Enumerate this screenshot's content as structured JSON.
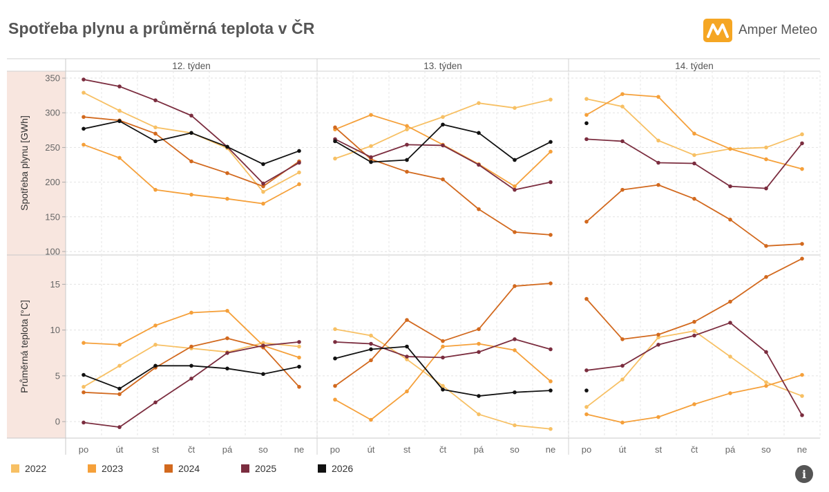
{
  "title": "Spotřeba plynu a průměrná teplota v ČR",
  "brand": {
    "name": "Amper Meteo",
    "color": "#f5a623"
  },
  "info_icon": "info-icon",
  "chart_data": {
    "type": "line",
    "facets": [
      "12. týden",
      "13. týden",
      "14. týden"
    ],
    "categories": [
      "po",
      "út",
      "st",
      "čt",
      "pá",
      "so",
      "ne"
    ],
    "rows": [
      {
        "key": "gas",
        "ylabel": "Spotřeba plynu [GWh]",
        "ylim": [
          95,
          360
        ],
        "yticks": [
          100,
          150,
          200,
          250,
          300,
          350
        ]
      },
      {
        "key": "temp",
        "ylabel": "Průměrná teplota [°C]",
        "ylim": [
          -1.8,
          18.2
        ],
        "yticks": [
          0,
          5,
          10,
          15
        ]
      }
    ],
    "grid": true,
    "legend_position": "bottom",
    "series": [
      {
        "name": "2022",
        "color": "#f7c064",
        "gas": [
          [
            329,
            303,
            279,
            271,
            249,
            186,
            214
          ],
          [
            234,
            252,
            276,
            294,
            314,
            307,
            319
          ],
          [
            320,
            309,
            260,
            239,
            248,
            250,
            269
          ]
        ],
        "temp": [
          [
            3.8,
            6.1,
            8.4,
            8.0,
            7.6,
            8.6,
            8.2
          ],
          [
            10.1,
            9.4,
            6.8,
            3.9,
            0.8,
            -0.4,
            -0.8
          ],
          [
            1.6,
            4.6,
            9.2,
            9.9,
            7.1,
            4.3,
            2.8
          ]
        ]
      },
      {
        "name": "2023",
        "color": "#f5a03a",
        "gas": [
          [
            254,
            235,
            189,
            182,
            176,
            169,
            197
          ],
          [
            276,
            297,
            281,
            254,
            226,
            194,
            244
          ],
          [
            297,
            327,
            323,
            270,
            248,
            233,
            219
          ]
        ],
        "temp": [
          [
            8.6,
            8.4,
            10.5,
            11.9,
            12.1,
            8.3,
            7.0
          ],
          [
            2.4,
            0.2,
            3.3,
            8.2,
            8.5,
            7.8,
            4.4
          ],
          [
            0.8,
            -0.1,
            0.5,
            1.9,
            3.1,
            3.9,
            5.1
          ]
        ]
      },
      {
        "name": "2024",
        "color": "#d2691e",
        "gas": [
          [
            294,
            289,
            270,
            230,
            213,
            194,
            230
          ],
          [
            279,
            233,
            215,
            204,
            161,
            128,
            124
          ],
          [
            143,
            189,
            196,
            176,
            146,
            108,
            111
          ]
        ],
        "temp": [
          [
            3.2,
            3.0,
            5.9,
            8.2,
            9.1,
            8.1,
            3.8
          ],
          [
            3.9,
            6.7,
            11.1,
            8.8,
            10.1,
            14.8,
            15.1
          ],
          [
            13.4,
            9.0,
            9.5,
            10.9,
            13.1,
            15.8,
            17.8
          ]
        ]
      },
      {
        "name": "2025",
        "color": "#7b2d3f",
        "gas": [
          [
            348,
            338,
            318,
            296,
            251,
            198,
            228
          ],
          [
            262,
            236,
            254,
            253,
            225,
            189,
            200
          ],
          [
            262,
            259,
            228,
            227,
            194,
            191,
            256
          ]
        ],
        "temp": [
          [
            -0.1,
            -0.6,
            2.1,
            4.7,
            7.5,
            8.3,
            8.7
          ],
          [
            8.7,
            8.5,
            7.1,
            7.0,
            7.6,
            9.0,
            7.9
          ],
          [
            5.6,
            6.1,
            8.4,
            9.4,
            10.8,
            7.6,
            0.7
          ]
        ]
      },
      {
        "name": "2026",
        "color": "#111111",
        "gas": [
          [
            277,
            288,
            259,
            271,
            251,
            226,
            245
          ],
          [
            259,
            229,
            232,
            283,
            271,
            232,
            258
          ],
          [
            285,
            null,
            null,
            null,
            null,
            null,
            null
          ]
        ],
        "temp": [
          [
            5.1,
            3.6,
            6.1,
            6.1,
            5.8,
            5.2,
            6.0
          ],
          [
            6.9,
            7.9,
            8.2,
            3.5,
            2.8,
            3.2,
            3.4
          ],
          [
            3.4,
            null,
            null,
            null,
            null,
            null,
            null
          ]
        ]
      }
    ]
  }
}
